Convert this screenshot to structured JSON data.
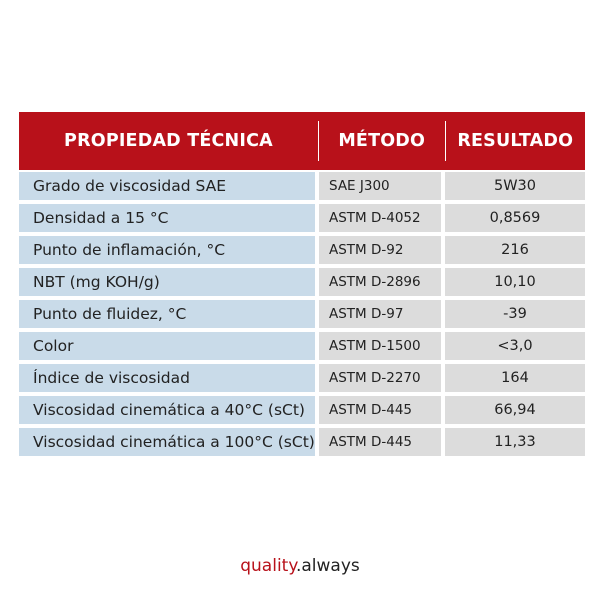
{
  "table": {
    "headers": [
      "PROPIEDAD TÉCNICA",
      "MÉTODO",
      "RESULTADO"
    ],
    "rows": [
      [
        "Grado de viscosidad SAE",
        "SAE J300",
        "5W30"
      ],
      [
        "Densidad a 15 °C",
        "ASTM D-4052",
        "0,8569"
      ],
      [
        "Punto de inflamación, °C",
        "ASTM D-92",
        "216"
      ],
      [
        "NBT (mg KOH/g)",
        "ASTM D-2896",
        "10,10"
      ],
      [
        "Punto de fluidez, °C",
        "ASTM D-97",
        "-39"
      ],
      [
        "Color",
        "ASTM D-1500",
        "<3,0"
      ],
      [
        "Índice de viscosidad",
        "ASTM D-2270",
        "164"
      ],
      [
        "Viscosidad cinemática a 40°C (sCt)",
        "ASTM D-445",
        "66,94"
      ],
      [
        "Viscosidad cinemática a 100°C (sCt)",
        "ASTM D-445",
        "11,33"
      ]
    ]
  },
  "logo": {
    "brand": "quality",
    "suffix": ".always"
  },
  "colors": {
    "header_bg": "#b8111a",
    "property_bg": "#c9dbe9",
    "value_bg": "#dcdcdc",
    "brand": "#b8111a"
  }
}
